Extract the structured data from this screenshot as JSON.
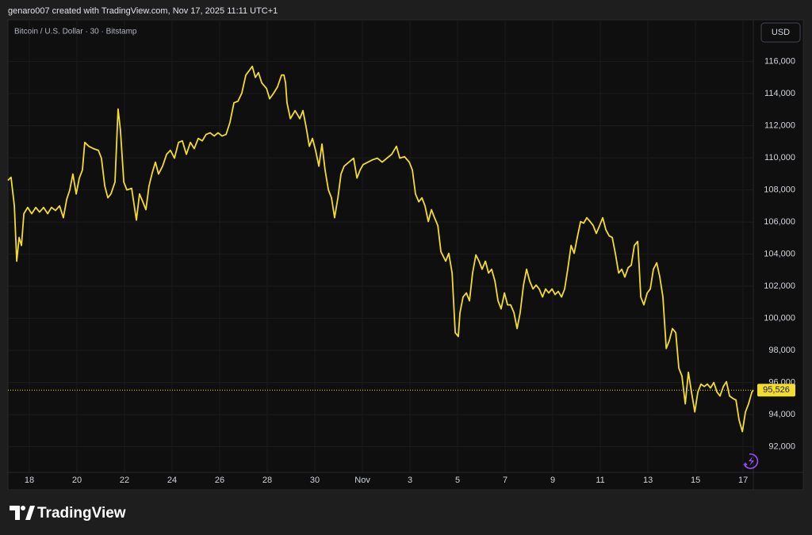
{
  "chart_data": {
    "type": "line",
    "caption": "genaro007 created with TradingView.com, Nov 17, 2025 11:11 UTC+1",
    "title": "Bitcoin / U.S. Dollar · 30 · Bitstamp",
    "currency": "USD",
    "brand": "TradingView",
    "color": "#f2dc2c",
    "grid": true,
    "x": [
      17.1,
      17.23,
      17.37,
      17.47,
      17.57,
      17.67,
      17.77,
      17.93,
      18.1,
      18.27,
      18.43,
      18.6,
      18.77,
      18.93,
      19.1,
      19.27,
      19.43,
      19.57,
      19.7,
      19.83,
      19.97,
      20.1,
      20.23,
      20.33,
      20.5,
      20.7,
      20.9,
      21.03,
      21.17,
      21.3,
      21.43,
      21.6,
      21.73,
      21.83,
      21.97,
      22.1,
      22.3,
      22.5,
      22.63,
      22.77,
      22.9,
      23.03,
      23.17,
      23.3,
      23.43,
      23.6,
      23.77,
      23.93,
      24.1,
      24.27,
      24.43,
      24.6,
      24.77,
      24.93,
      25.1,
      25.27,
      25.43,
      25.6,
      25.77,
      25.93,
      26.1,
      26.27,
      26.43,
      26.6,
      26.77,
      26.93,
      27.1,
      27.23,
      27.37,
      27.5,
      27.63,
      27.77,
      27.97,
      28.1,
      28.27,
      28.43,
      28.6,
      28.7,
      28.77,
      28.83,
      28.97,
      29.17,
      29.37,
      29.5,
      29.63,
      29.77,
      29.9,
      30.03,
      30.17,
      30.3,
      30.43,
      30.57,
      30.7,
      30.83,
      30.97,
      31.1,
      31.23,
      31.43,
      31.63,
      31.77,
      31.9,
      32.03,
      32.23,
      32.43,
      32.63,
      32.83,
      33.03,
      33.23,
      33.43,
      33.57,
      33.77,
      33.97,
      34.1,
      34.23,
      34.37,
      34.5,
      34.63,
      34.77,
      34.9,
      35.03,
      35.17,
      35.3,
      35.5,
      35.63,
      35.77,
      35.9,
      36.03,
      36.1,
      36.23,
      36.37,
      36.5,
      36.63,
      36.77,
      36.9,
      37.03,
      37.17,
      37.3,
      37.43,
      37.57,
      37.7,
      37.83,
      37.97,
      38.1,
      38.23,
      38.37,
      38.5,
      38.63,
      38.77,
      38.9,
      39.03,
      39.17,
      39.3,
      39.43,
      39.57,
      39.7,
      39.83,
      39.97,
      40.1,
      40.23,
      40.37,
      40.5,
      40.63,
      40.77,
      40.9,
      41.03,
      41.17,
      41.3,
      41.43,
      41.57,
      41.7,
      41.83,
      41.97,
      42.1,
      42.23,
      42.37,
      42.5,
      42.63,
      42.77,
      42.9,
      43.03,
      43.17,
      43.3,
      43.43,
      43.57,
      43.63,
      43.7,
      43.83,
      43.97,
      44.1,
      44.23,
      44.37,
      44.5,
      44.63,
      44.77,
      44.9,
      45.03,
      45.17,
      45.3,
      45.43,
      45.57,
      45.7,
      45.83,
      45.97,
      46.1,
      46.23,
      46.37,
      46.5,
      46.63,
      46.77,
      46.9,
      47.03,
      47.17,
      47.3,
      47.43,
      47.57,
      47.7,
      47.83,
      47.97,
      48.1,
      48.23,
      48.37,
      48.43
    ],
    "values": [
      108590,
      108790,
      107010,
      103560,
      105040,
      104540,
      106520,
      106910,
      106520,
      106910,
      106620,
      106910,
      106520,
      106910,
      106720,
      107010,
      106270,
      107410,
      108000,
      108990,
      107750,
      108740,
      109240,
      110960,
      110720,
      110570,
      110470,
      109980,
      108250,
      107510,
      107750,
      108490,
      113040,
      111700,
      108490,
      108000,
      108100,
      106120,
      107750,
      107260,
      106770,
      108250,
      109090,
      109730,
      108990,
      109480,
      110220,
      110470,
      109980,
      110960,
      111060,
      110220,
      110960,
      110570,
      111210,
      111060,
      111460,
      111560,
      111360,
      111560,
      111360,
      111460,
      112200,
      113430,
      113530,
      114030,
      115160,
      115410,
      115700,
      115010,
      115310,
      114670,
      114320,
      113680,
      114030,
      114420,
      115160,
      115160,
      114670,
      113430,
      112440,
      112940,
      112440,
      112940,
      111950,
      110720,
      111210,
      110470,
      109480,
      110860,
      109240,
      108000,
      107510,
      106270,
      107510,
      108990,
      109480,
      109730,
      109980,
      108740,
      109240,
      109580,
      109730,
      109880,
      109980,
      109730,
      109980,
      110220,
      110720,
      109980,
      110070,
      109730,
      109240,
      107750,
      107260,
      107510,
      107010,
      106030,
      106770,
      106270,
      105780,
      104150,
      103560,
      104050,
      102820,
      99110,
      98870,
      100350,
      101330,
      101580,
      101090,
      102820,
      103950,
      103560,
      103060,
      103560,
      102820,
      103060,
      102320,
      101090,
      100590,
      101580,
      100840,
      100840,
      100350,
      99360,
      100350,
      102070,
      103060,
      102320,
      101830,
      102070,
      101830,
      101330,
      101830,
      101580,
      101830,
      101480,
      101680,
      101330,
      101830,
      103060,
      104540,
      104050,
      105040,
      106030,
      105930,
      106270,
      106030,
      105780,
      105290,
      105780,
      106270,
      105530,
      105140,
      105040,
      104050,
      102820,
      103060,
      102570,
      103160,
      103310,
      104540,
      104790,
      103310,
      101330,
      100840,
      101580,
      101830,
      103060,
      103460,
      102570,
      101330,
      98120,
      98620,
      99360,
      99110,
      96890,
      96400,
      94670,
      96640,
      95410,
      94170,
      95410,
      95900,
      95750,
      95900,
      95660,
      96000,
      95410,
      95160,
      95750,
      96050,
      95160,
      95010,
      94910,
      93680,
      92940,
      94170,
      94670,
      95410,
      95526
    ],
    "price_marker": {
      "value": 95526,
      "label": "95,526"
    },
    "xlim": [
      17.1,
      48.43
    ],
    "xticks": [
      18,
      20,
      22,
      24,
      26,
      28,
      30,
      {
        "value": 32,
        "label": "Nov"
      },
      {
        "value": 34,
        "label": "3"
      },
      {
        "value": 36,
        "label": "5"
      },
      {
        "value": 38,
        "label": "7"
      },
      {
        "value": 40,
        "label": "9"
      },
      {
        "value": 42,
        "label": "11"
      },
      {
        "value": 44,
        "label": "13"
      },
      {
        "value": 46,
        "label": "15"
      },
      {
        "value": 48,
        "label": "17"
      }
    ],
    "ylim": [
      90400,
      118600
    ],
    "yticks": [
      {
        "value": 92000,
        "label": "92,000"
      },
      {
        "value": 94000,
        "label": "94,000"
      },
      {
        "value": 96000,
        "label": "96,000"
      },
      {
        "value": 98000,
        "label": "98,000"
      },
      {
        "value": 100000,
        "label": "100,000"
      },
      {
        "value": 102000,
        "label": "102,000"
      },
      {
        "value": 104000,
        "label": "104,000"
      },
      {
        "value": 106000,
        "label": "106,000"
      },
      {
        "value": 108000,
        "label": "108,000"
      },
      {
        "value": 110000,
        "label": "110,000"
      },
      {
        "value": 112000,
        "label": "112,000"
      },
      {
        "value": 114000,
        "label": "114,000"
      },
      {
        "value": 116000,
        "label": "116,000"
      }
    ]
  }
}
